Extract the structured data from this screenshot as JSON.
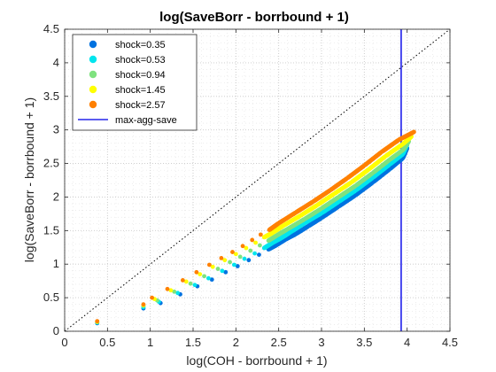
{
  "chart_data": {
    "type": "scatter",
    "title": "log(SaveBorr - borrbound + 1)",
    "xlabel": "log(COH - borrbound + 1)",
    "ylabel": "log(SaveBorr - borrbound + 1)",
    "xlim": [
      0,
      4.5
    ],
    "ylim": [
      0,
      4.5
    ],
    "xticks": [
      "0",
      "0.5",
      "1",
      "1.5",
      "2",
      "2.5",
      "3",
      "3.5",
      "4",
      "4.5"
    ],
    "yticks": [
      "0",
      "0.5",
      "1",
      "1.5",
      "2",
      "2.5",
      "3",
      "3.5",
      "4",
      "4.5"
    ],
    "grid": "on (major and minor, dotted)",
    "legend_position": "top-left",
    "series": [
      {
        "name": "shock=0.35",
        "color": "#0072e0",
        "points": [
          [
            0.38,
            0.12
          ],
          [
            0.92,
            0.34
          ],
          [
            1.12,
            0.42
          ],
          [
            1.35,
            0.55
          ],
          [
            1.55,
            0.67
          ],
          [
            1.72,
            0.77
          ],
          [
            1.88,
            0.88
          ],
          [
            2.02,
            0.97
          ],
          [
            2.15,
            1.06
          ],
          [
            2.27,
            1.14
          ],
          [
            2.38,
            1.22
          ],
          [
            2.48,
            1.29
          ],
          [
            2.58,
            1.37
          ],
          [
            2.7,
            1.45
          ],
          [
            2.85,
            1.57
          ],
          [
            3.0,
            1.69
          ],
          [
            3.2,
            1.86
          ],
          [
            3.4,
            2.03
          ],
          [
            3.6,
            2.22
          ],
          [
            3.8,
            2.42
          ],
          [
            3.95,
            2.58
          ],
          [
            4.0,
            2.73
          ]
        ]
      },
      {
        "name": "shock=0.53",
        "color": "#00e5ee",
        "points": [
          [
            0.38,
            0.13
          ],
          [
            0.92,
            0.36
          ],
          [
            1.1,
            0.44
          ],
          [
            1.32,
            0.57
          ],
          [
            1.52,
            0.69
          ],
          [
            1.68,
            0.79
          ],
          [
            1.84,
            0.9
          ],
          [
            1.98,
            0.99
          ],
          [
            2.1,
            1.08
          ],
          [
            2.22,
            1.16
          ],
          [
            2.33,
            1.24
          ],
          [
            2.43,
            1.32
          ],
          [
            2.53,
            1.39
          ],
          [
            2.64,
            1.48
          ],
          [
            2.8,
            1.61
          ],
          [
            3.0,
            1.76
          ],
          [
            3.2,
            1.93
          ],
          [
            3.4,
            2.1
          ],
          [
            3.6,
            2.29
          ],
          [
            3.8,
            2.49
          ],
          [
            3.95,
            2.64
          ],
          [
            4.0,
            2.78
          ]
        ]
      },
      {
        "name": "shock=0.94",
        "color": "#7fe27f",
        "points": [
          [
            0.38,
            0.14
          ],
          [
            0.92,
            0.38
          ],
          [
            1.08,
            0.46
          ],
          [
            1.28,
            0.59
          ],
          [
            1.47,
            0.71
          ],
          [
            1.63,
            0.82
          ],
          [
            1.79,
            0.93
          ],
          [
            1.93,
            1.03
          ],
          [
            2.05,
            1.11
          ],
          [
            2.17,
            1.2
          ],
          [
            2.28,
            1.28
          ],
          [
            2.38,
            1.35
          ],
          [
            2.48,
            1.43
          ],
          [
            2.6,
            1.52
          ],
          [
            2.8,
            1.67
          ],
          [
            3.0,
            1.83
          ],
          [
            3.2,
            2.0
          ],
          [
            3.4,
            2.17
          ],
          [
            3.6,
            2.36
          ],
          [
            3.8,
            2.56
          ],
          [
            3.95,
            2.7
          ],
          [
            4.02,
            2.83
          ]
        ]
      },
      {
        "name": "shock=1.45",
        "color": "#ffff00",
        "points": [
          [
            0.38,
            0.14
          ],
          [
            0.92,
            0.39
          ],
          [
            1.05,
            0.48
          ],
          [
            1.24,
            0.61
          ],
          [
            1.42,
            0.74
          ],
          [
            1.58,
            0.85
          ],
          [
            1.73,
            0.96
          ],
          [
            1.87,
            1.06
          ],
          [
            2.0,
            1.15
          ],
          [
            2.12,
            1.24
          ],
          [
            2.23,
            1.32
          ],
          [
            2.33,
            1.4
          ],
          [
            2.43,
            1.47
          ],
          [
            2.55,
            1.57
          ],
          [
            2.75,
            1.72
          ],
          [
            2.95,
            1.88
          ],
          [
            3.15,
            2.05
          ],
          [
            3.35,
            2.22
          ],
          [
            3.55,
            2.41
          ],
          [
            3.75,
            2.61
          ],
          [
            3.95,
            2.79
          ],
          [
            4.05,
            2.9
          ]
        ]
      },
      {
        "name": "shock=2.57",
        "color": "#ff8000",
        "points": [
          [
            0.38,
            0.15
          ],
          [
            0.92,
            0.4
          ],
          [
            1.02,
            0.5
          ],
          [
            1.2,
            0.63
          ],
          [
            1.38,
            0.76
          ],
          [
            1.54,
            0.88
          ],
          [
            1.69,
            0.99
          ],
          [
            1.83,
            1.09
          ],
          [
            1.96,
            1.18
          ],
          [
            2.08,
            1.27
          ],
          [
            2.19,
            1.36
          ],
          [
            2.29,
            1.44
          ],
          [
            2.39,
            1.51
          ],
          [
            2.5,
            1.61
          ],
          [
            2.7,
            1.77
          ],
          [
            2.9,
            1.93
          ],
          [
            3.1,
            2.1
          ],
          [
            3.3,
            2.28
          ],
          [
            3.5,
            2.47
          ],
          [
            3.7,
            2.67
          ],
          [
            3.9,
            2.85
          ],
          [
            4.08,
            2.97
          ]
        ]
      }
    ],
    "reference_lines": [
      {
        "name": "max-agg-save",
        "orientation": "vertical",
        "x": 3.93,
        "color": "#4444ee"
      },
      {
        "name": "",
        "orientation": "diagonal",
        "from": [
          0,
          0
        ],
        "to": [
          4.5,
          4.5
        ],
        "color": "#000000",
        "style": "dotted"
      }
    ],
    "legend": [
      {
        "label": "shock=0.35",
        "kind": "marker",
        "color": "#0072e0"
      },
      {
        "label": "shock=0.53",
        "kind": "marker",
        "color": "#00e5ee"
      },
      {
        "label": "shock=0.94",
        "kind": "marker",
        "color": "#7fe27f"
      },
      {
        "label": "shock=1.45",
        "kind": "marker",
        "color": "#ffff00"
      },
      {
        "label": "shock=2.57",
        "kind": "marker",
        "color": "#ff8000"
      },
      {
        "label": "max-agg-save",
        "kind": "line",
        "color": "#4444ee"
      }
    ]
  }
}
